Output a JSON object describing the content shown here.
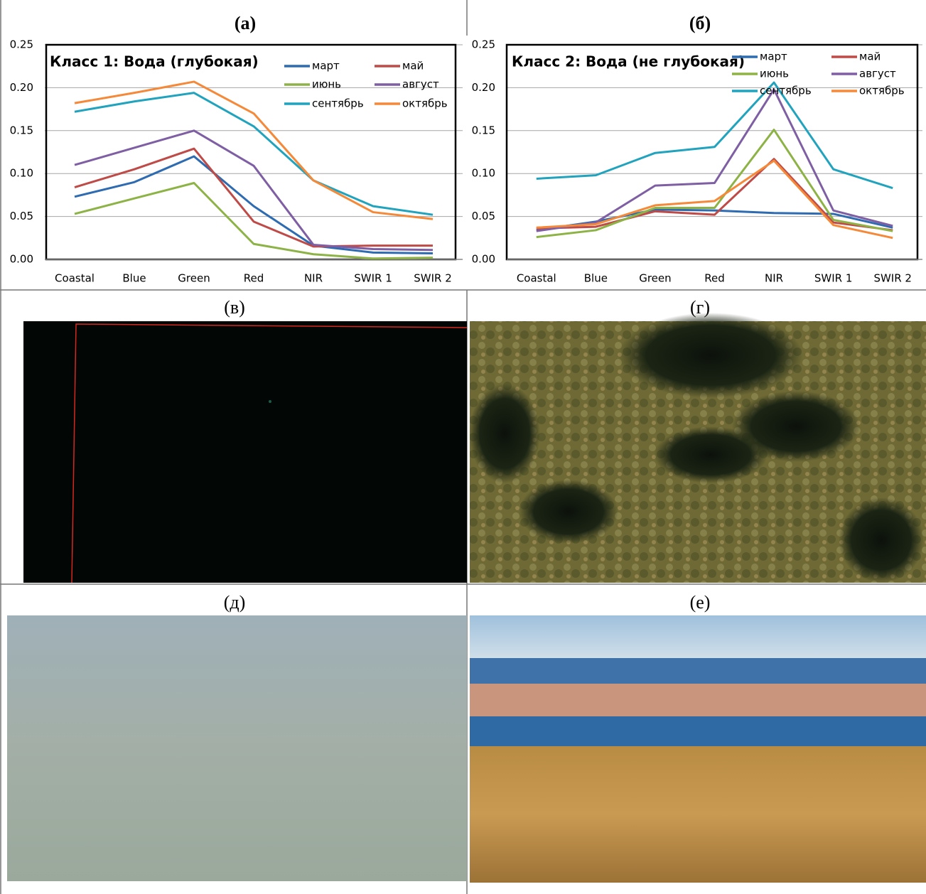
{
  "chart_data": [
    {
      "type": "line",
      "panel": "(а)",
      "title": "Класс 1: Вода (глубокая)",
      "categories": [
        "Coastal",
        "Blue",
        "Green",
        "Red",
        "NIR",
        "SWIR 1",
        "SWIR 2"
      ],
      "ylim": [
        0,
        0.25
      ],
      "yticks": [
        {
          "value": 0,
          "label": "0.00"
        },
        0.05,
        {
          "value": 0.1,
          "label": "0.10"
        },
        0.15,
        {
          "value": 0.2,
          "label": "0.20"
        },
        0.25
      ],
      "grid": true,
      "series": [
        {
          "name": "март",
          "color": "#2e6bb0",
          "values": [
            0.073,
            0.09,
            0.12,
            0.062,
            0.016,
            0.008,
            0.007
          ]
        },
        {
          "name": "май",
          "color": "#be4b48",
          "values": [
            0.084,
            0.105,
            0.129,
            0.044,
            0.015,
            0.016,
            0.016
          ]
        },
        {
          "name": "июнь",
          "color": "#8db347",
          "values": [
            0.053,
            0.071,
            0.089,
            0.018,
            0.006,
            0.001,
            0.002
          ]
        },
        {
          "name": "август",
          "color": "#7f5fa3",
          "values": [
            0.11,
            0.13,
            0.15,
            0.109,
            0.017,
            0.012,
            0.011
          ]
        },
        {
          "name": "сентябрь",
          "color": "#21a3bd",
          "values": [
            0.172,
            0.184,
            0.194,
            0.155,
            0.092,
            0.062,
            0.052
          ]
        },
        {
          "name": "октябрь",
          "color": "#f5893a",
          "values": [
            0.182,
            0.194,
            0.207,
            0.17,
            0.092,
            0.055,
            0.047
          ]
        }
      ]
    },
    {
      "type": "line",
      "panel": "(б)",
      "title": "Класс 2: Вода (не глубокая)",
      "categories": [
        "Coastal",
        "Blue",
        "Green",
        "Red",
        "NIR",
        "SWIR 1",
        "SWIR 2"
      ],
      "ylim": [
        0,
        0.25
      ],
      "yticks": [
        {
          "value": 0,
          "label": "0.00"
        },
        0.05,
        {
          "value": 0.1,
          "label": "0.10"
        },
        0.15,
        {
          "value": 0.2,
          "label": "0.20"
        },
        0.25
      ],
      "grid": true,
      "series": [
        {
          "name": "март",
          "color": "#2e6bb0",
          "values": [
            0.034,
            0.044,
            0.058,
            0.057,
            0.054,
            0.053,
            0.037
          ]
        },
        {
          "name": "май",
          "color": "#be4b48",
          "values": [
            0.036,
            0.038,
            0.056,
            0.052,
            0.117,
            0.043,
            0.034
          ]
        },
        {
          "name": "июнь",
          "color": "#8db347",
          "values": [
            0.026,
            0.034,
            0.06,
            0.06,
            0.151,
            0.046,
            0.033
          ]
        },
        {
          "name": "август",
          "color": "#7f5fa3",
          "values": [
            0.033,
            0.043,
            0.086,
            0.089,
            0.198,
            0.057,
            0.039
          ]
        },
        {
          "name": "сентябрь",
          "color": "#21a3bd",
          "values": [
            0.094,
            0.098,
            0.124,
            0.131,
            0.206,
            0.105,
            0.083
          ]
        },
        {
          "name": "октябрь",
          "color": "#f5893a",
          "values": [
            0.037,
            0.041,
            0.063,
            0.068,
            0.115,
            0.04,
            0.025
          ]
        }
      ]
    }
  ],
  "panels": [
    "(в)",
    "(г)",
    "(д)",
    "(е)"
  ]
}
